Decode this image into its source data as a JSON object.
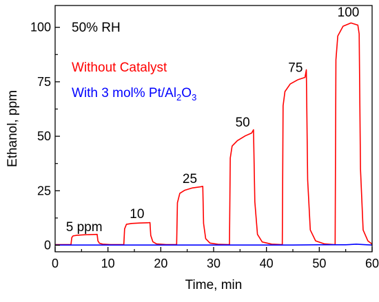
{
  "chart_data": {
    "type": "line",
    "xlabel": "Time, min",
    "ylabel": "Ethanol, ppm",
    "xlim": [
      0,
      60
    ],
    "ylim": [
      -3,
      110
    ],
    "xticks": [
      0,
      10,
      20,
      30,
      40,
      50,
      60
    ],
    "yticks": [
      0,
      25,
      50,
      75,
      100
    ],
    "grid": false,
    "annotations": {
      "condition": "50% RH",
      "step_labels": [
        {
          "text": "5 ppm",
          "x": 5.5,
          "y": 6.5
        },
        {
          "text": "10",
          "x": 15.5,
          "y": 12.5
        },
        {
          "text": "25",
          "x": 25.5,
          "y": 28.5
        },
        {
          "text": "50",
          "x": 35.5,
          "y": 54.5
        },
        {
          "text": "75",
          "x": 45.5,
          "y": 79.5
        },
        {
          "text": "100",
          "x": 55.5,
          "y": 105.0
        }
      ]
    },
    "legend": {
      "placement": "upper-left",
      "entries": [
        {
          "label": "Without Catalyst",
          "color": "#ff0000"
        },
        {
          "label_main": "With 3 mol% Pt/Al",
          "sub1": "2",
          "mid": "O",
          "sub2": "3",
          "color": "#0000ff"
        }
      ]
    },
    "series": [
      {
        "color": "#ff0000",
        "x": [
          0,
          3.0,
          3.15,
          3.4,
          4.2,
          5.5,
          7.0,
          7.95,
          8.1,
          8.4,
          9.0,
          10.5,
          12.8,
          13.0,
          13.15,
          13.5,
          14.5,
          16.0,
          17.5,
          17.95,
          18.1,
          18.5,
          19.2,
          21.0,
          22.8,
          23.0,
          23.15,
          23.6,
          24.5,
          26.0,
          27.5,
          27.95,
          28.1,
          28.5,
          29.3,
          31.0,
          32.8,
          33.0,
          33.15,
          33.5,
          34.5,
          36.0,
          37.2,
          37.55,
          37.8,
          38.3,
          39.2,
          41.0,
          42.8,
          43.0,
          43.15,
          43.5,
          44.5,
          46.0,
          47.3,
          47.55,
          47.8,
          48.3,
          49.3,
          51.0,
          52.8,
          53.0,
          53.15,
          53.5,
          54.5,
          56.0,
          57.3,
          57.55,
          57.8,
          58.3,
          59.2,
          60
        ],
        "y": [
          0.3,
          0.3,
          3.5,
          4.3,
          4.6,
          4.8,
          4.9,
          5.0,
          2.0,
          0.9,
          0.5,
          0.3,
          0.3,
          0.3,
          7.5,
          9.6,
          10.0,
          10.2,
          10.3,
          10.4,
          4.5,
          1.6,
          0.6,
          0.3,
          0.3,
          0.3,
          19.5,
          23.8,
          25.2,
          26.3,
          26.8,
          27.0,
          10.0,
          3.0,
          1.0,
          0.4,
          0.3,
          0.3,
          40.0,
          45.5,
          48.0,
          50.2,
          51.5,
          53.0,
          20.0,
          5.0,
          1.5,
          0.5,
          0.3,
          0.3,
          64.0,
          70.5,
          74.0,
          76.0,
          77.0,
          80.5,
          30.0,
          7.0,
          2.0,
          0.6,
          0.3,
          0.3,
          85.0,
          96.0,
          100.5,
          102.0,
          101.0,
          97.0,
          35.0,
          7.0,
          2.0,
          0.5
        ]
      },
      {
        "color": "#0000ff",
        "x": [
          0,
          5,
          10,
          15,
          20,
          25,
          30,
          35,
          40,
          45,
          50,
          55,
          57,
          59,
          60
        ],
        "y": [
          0.1,
          0.1,
          0.1,
          0.1,
          0.1,
          0.1,
          0.1,
          0.1,
          0.1,
          0.1,
          0.2,
          0.2,
          0.5,
          0.2,
          0.1
        ]
      }
    ]
  }
}
